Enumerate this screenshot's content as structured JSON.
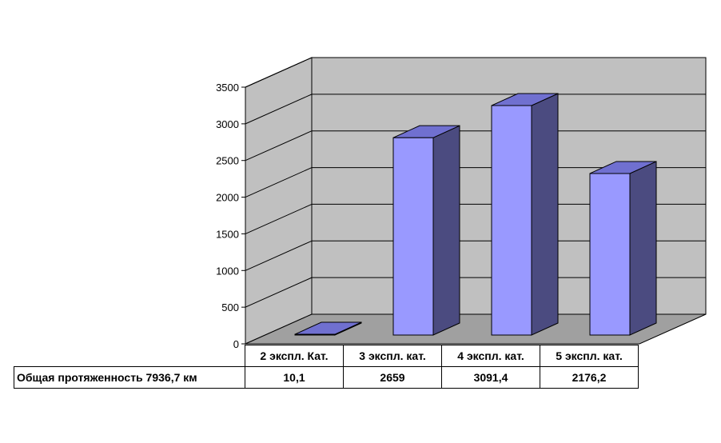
{
  "chart_data": {
    "type": "bar",
    "categories": [
      "2 экспл. Кат.",
      "3 экспл. кат.",
      "4 экспл. кат.",
      "5 экспл. кат."
    ],
    "series": [
      {
        "name": "Общая протяженность 7936,7 км",
        "values": [
          10.1,
          2659,
          3091.4,
          2176.2
        ]
      }
    ],
    "value_labels": [
      "10,1",
      "2659",
      "3091,4",
      "2176,2"
    ],
    "ylim": [
      0,
      3500
    ],
    "yticks": [
      0,
      500,
      1000,
      1500,
      2000,
      2500,
      3000,
      3500
    ],
    "grid": true,
    "three_d": true,
    "colors": {
      "wall": "#c0c0c0",
      "floor": "#a0a0a0",
      "bar_front": "#9999ff",
      "bar_side": "#4b4b80",
      "bar_top": "#7070d0"
    }
  }
}
